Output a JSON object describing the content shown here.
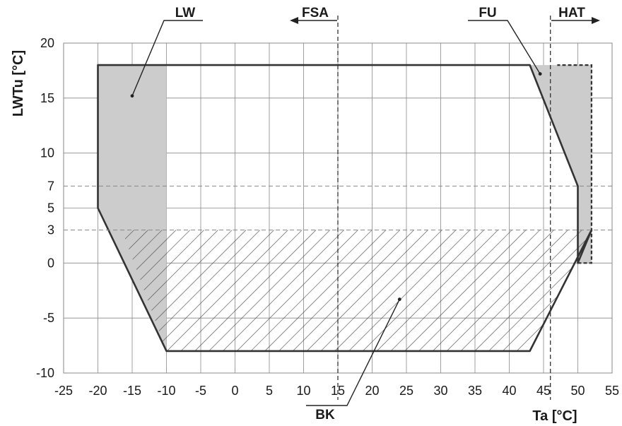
{
  "chart_data": {
    "type": "area",
    "title": "",
    "xlabel": "Ta [°C]",
    "ylabel": "LWTu [°C]",
    "xlim": [
      -25,
      55
    ],
    "ylim": [
      -10,
      20
    ],
    "x_ticks": [
      -25,
      -20,
      -15,
      -10,
      -5,
      0,
      5,
      10,
      15,
      20,
      25,
      30,
      35,
      40,
      45,
      50,
      55
    ],
    "y_ticks": [
      -10,
      -5,
      0,
      3,
      5,
      7,
      10,
      15,
      20
    ],
    "grid": true,
    "reference_lines": [
      {
        "axis": "y",
        "value": 7,
        "style": "dashed"
      },
      {
        "axis": "y",
        "value": 3,
        "style": "dashed"
      },
      {
        "axis": "x",
        "value": 15,
        "style": "dashed"
      },
      {
        "axis": "x",
        "value": 46,
        "style": "dashed"
      }
    ],
    "envelope": [
      [
        -20,
        18
      ],
      [
        43,
        18
      ],
      [
        50,
        7
      ],
      [
        50,
        0
      ],
      [
        52,
        3
      ],
      [
        43,
        -8
      ],
      [
        -10,
        -8
      ],
      [
        -20,
        5
      ]
    ],
    "regions": [
      {
        "label": "LW",
        "fill": "grey",
        "polygon": [
          [
            -20,
            18
          ],
          [
            -10,
            18
          ],
          [
            -10,
            -8
          ],
          [
            -20,
            5
          ]
        ]
      },
      {
        "label": "FU",
        "fill": "grey",
        "polygon": [
          [
            43,
            18
          ],
          [
            52,
            18
          ],
          [
            52,
            0
          ],
          [
            50,
            0
          ],
          [
            50,
            7
          ]
        ]
      },
      {
        "label": "BK",
        "fill": "hatch",
        "polygon": [
          [
            -16.5,
            3
          ],
          [
            52,
            3
          ],
          [
            43,
            -8
          ],
          [
            -10,
            -8
          ]
        ]
      }
    ],
    "extension_outline": [
      [
        50,
        0
      ],
      [
        52,
        0
      ],
      [
        52,
        18
      ],
      [
        47,
        18
      ]
    ],
    "callouts": [
      {
        "label": "LW",
        "direction": "none",
        "point": [
          -15,
          15.2
        ]
      },
      {
        "label": "FSA",
        "direction": "left"
      },
      {
        "label": "FU",
        "direction": "none",
        "point": [
          44.5,
          17.2
        ]
      },
      {
        "label": "HAT",
        "direction": "right"
      },
      {
        "label": "BK",
        "direction": "none",
        "point": [
          24,
          -3.3
        ]
      }
    ],
    "colors": {
      "grey_fill": "#cccccc",
      "line": "#333333",
      "grid": "#888888",
      "hatch": "#444444"
    }
  }
}
